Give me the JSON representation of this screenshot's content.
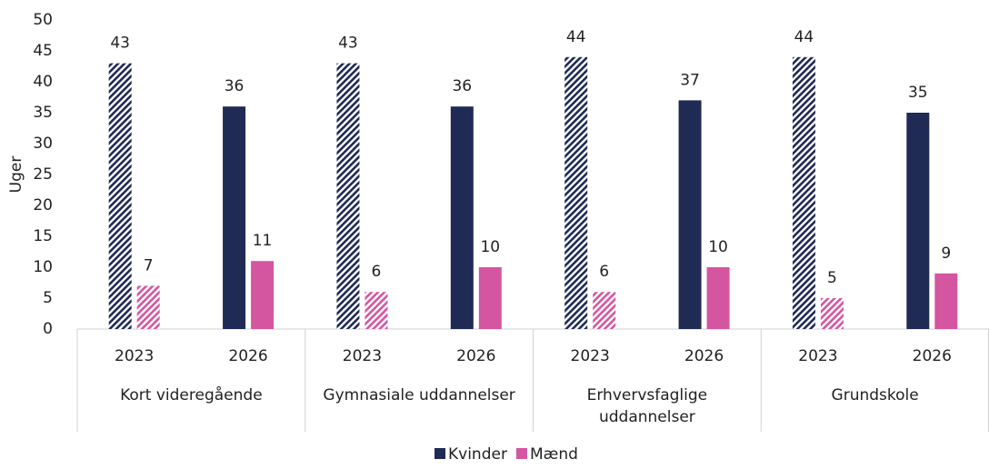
{
  "chart_data": {
    "type": "bar",
    "ylabel": "Uger",
    "categories": [
      "2023",
      "2026",
      "2023",
      "2026",
      "2023",
      "2026",
      "2023",
      "2026"
    ],
    "group_labels": [
      "Kort videregående",
      "Gymnasiale uddannelser",
      "Erhvervsfaglige\nuddannelser",
      "Grundskole"
    ],
    "hatched": [
      true,
      false,
      true,
      false,
      true,
      false,
      true,
      false
    ],
    "series": [
      {
        "name": "Kvinder",
        "color": "#1f2a55",
        "values": [
          43,
          36,
          43,
          36,
          44,
          37,
          44,
          35
        ]
      },
      {
        "name": "Mænd",
        "color": "#d455a0",
        "values": [
          7,
          11,
          6,
          10,
          6,
          10,
          5,
          9
        ]
      }
    ],
    "ylim": [
      0,
      50
    ],
    "yticks": [
      0,
      5,
      10,
      15,
      20,
      25,
      30,
      35,
      40,
      45,
      50
    ],
    "legend": "bottom"
  }
}
